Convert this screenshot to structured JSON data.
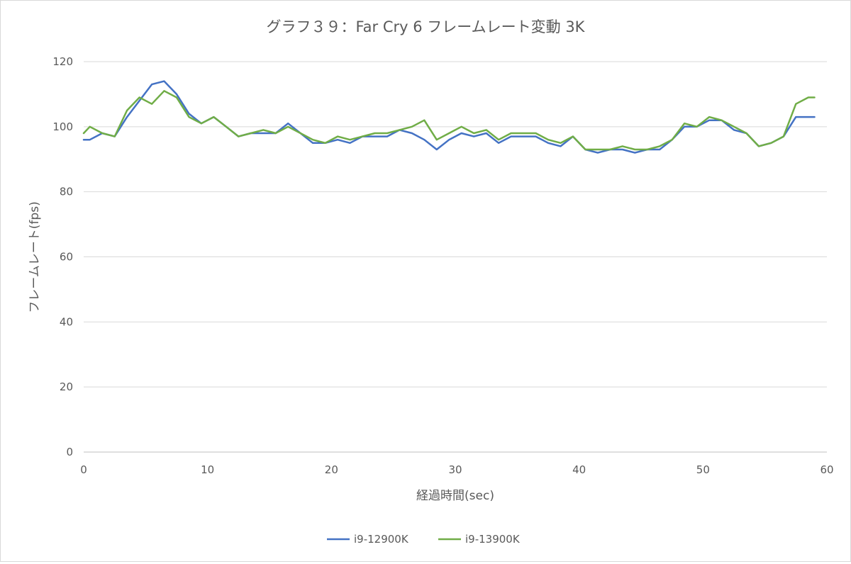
{
  "chart_data": {
    "type": "line",
    "title": "グラフ３９：Far Cry 6 フレームレート変動 3K",
    "xlabel": "経過時間(sec)",
    "ylabel": "フレームレート(fps)",
    "xlim": [
      0,
      60
    ],
    "ylim": [
      0,
      120
    ],
    "x_ticks": [
      0,
      10,
      20,
      30,
      40,
      50,
      60
    ],
    "y_ticks": [
      0,
      20,
      40,
      60,
      80,
      100,
      120
    ],
    "grid": true,
    "legend_position": "bottom",
    "x": [
      0,
      0.5,
      1.5,
      2.5,
      3.5,
      4.5,
      5.5,
      6.5,
      7.5,
      8.5,
      9.5,
      10.5,
      11.5,
      12.5,
      13.5,
      14.5,
      15.5,
      16.5,
      17.5,
      18.5,
      19.5,
      20.5,
      21.5,
      22.5,
      23.5,
      24.5,
      25.5,
      26.5,
      27.5,
      28.5,
      29.5,
      30.5,
      31.5,
      32.5,
      33.5,
      34.5,
      35.5,
      36.5,
      37.5,
      38.5,
      39.5,
      40.5,
      41.5,
      42.5,
      43.5,
      44.5,
      45.5,
      46.5,
      47.5,
      48.5,
      49.5,
      50.5,
      51.5,
      52.5,
      53.5,
      54.5,
      55.5,
      56.5,
      57.5,
      58.5,
      59
    ],
    "series": [
      {
        "name": "i9-12900K",
        "color": "#4472c4",
        "values": [
          96,
          96,
          98,
          97,
          103,
          108,
          113,
          114,
          110,
          104,
          101,
          103,
          100,
          97,
          98,
          98,
          98,
          101,
          98,
          95,
          95,
          96,
          95,
          97,
          97,
          97,
          99,
          98,
          96,
          93,
          96,
          98,
          97,
          98,
          95,
          97,
          97,
          97,
          95,
          94,
          97,
          93,
          92,
          93,
          93,
          92,
          93,
          93,
          96,
          100,
          100,
          102,
          102,
          99,
          98,
          94,
          95,
          97,
          103,
          103,
          103
        ]
      },
      {
        "name": "i9-13900K",
        "color": "#70ad47",
        "values": [
          98,
          100,
          98,
          97,
          105,
          109,
          107,
          111,
          109,
          103,
          101,
          103,
          100,
          97,
          98,
          99,
          98,
          100,
          98,
          96,
          95,
          97,
          96,
          97,
          98,
          98,
          99,
          100,
          102,
          96,
          98,
          100,
          98,
          99,
          96,
          98,
          98,
          98,
          96,
          95,
          97,
          93,
          93,
          93,
          94,
          93,
          93,
          94,
          96,
          101,
          100,
          103,
          102,
          100,
          98,
          94,
          95,
          97,
          107,
          109,
          109
        ]
      }
    ]
  }
}
